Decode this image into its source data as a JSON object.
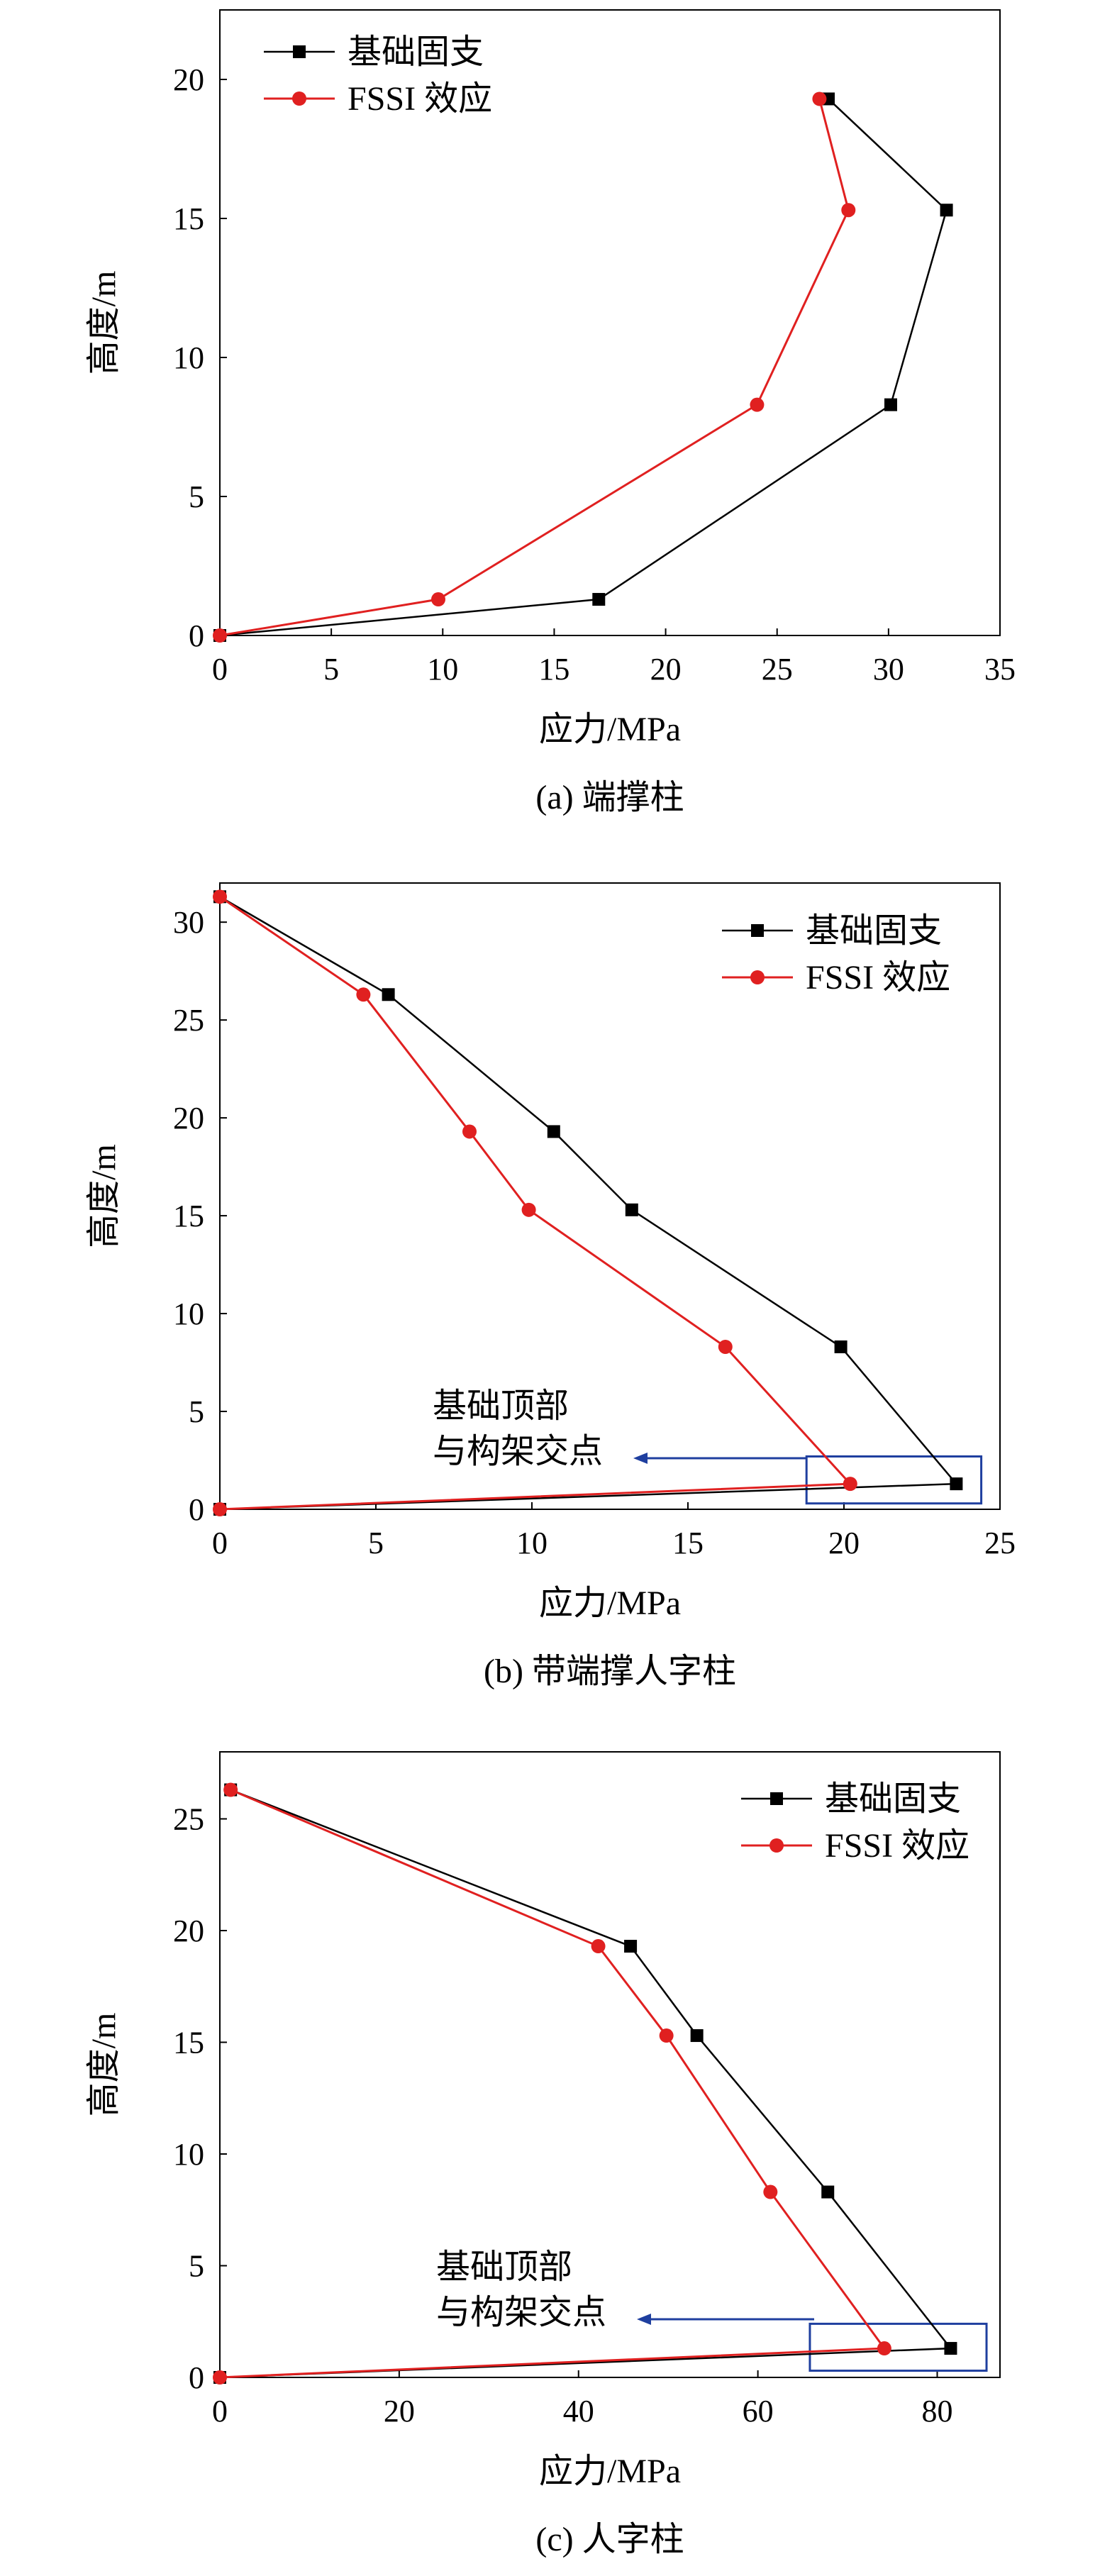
{
  "colors": {
    "fixed": "#000000",
    "fssi": "#e02020",
    "box": "#1f3f9f"
  },
  "chart_data": [
    {
      "type": "line",
      "caption": "(a) 端撑柱",
      "xlabel": "应力/MPa",
      "ylabel": "高度/m",
      "xlim": [
        0,
        35
      ],
      "ylim": [
        0,
        22.5
      ],
      "xticks": [
        0,
        5,
        10,
        15,
        20,
        25,
        30,
        35
      ],
      "yticks": [
        0,
        5,
        10,
        15,
        20
      ],
      "legend_position": "top-left",
      "series": [
        {
          "name": "基础固支",
          "marker": "square",
          "points": [
            [
              0,
              0
            ],
            [
              17,
              1.3
            ],
            [
              30.1,
              8.3
            ],
            [
              32.6,
              15.3
            ],
            [
              27.3,
              19.3
            ]
          ]
        },
        {
          "name": "FSSI 效应",
          "marker": "circle",
          "points": [
            [
              0,
              0
            ],
            [
              9.8,
              1.3
            ],
            [
              24.1,
              8.3
            ],
            [
              28.2,
              15.3
            ],
            [
              26.9,
              19.3
            ]
          ]
        }
      ],
      "annotation": null
    },
    {
      "type": "line",
      "caption": "(b) 带端撑人字柱",
      "xlabel": "应力/MPa",
      "ylabel": "高度/m",
      "xlim": [
        0,
        25
      ],
      "ylim": [
        0,
        32
      ],
      "xticks": [
        0,
        5,
        10,
        15,
        20,
        25
      ],
      "yticks": [
        0,
        5,
        10,
        15,
        20,
        25,
        30
      ],
      "legend_position": "top-right",
      "series": [
        {
          "name": "基础固支",
          "marker": "square",
          "points": [
            [
              0,
              0
            ],
            [
              23.6,
              1.3
            ],
            [
              19.9,
              8.3
            ],
            [
              13.2,
              15.3
            ],
            [
              10.7,
              19.3
            ],
            [
              5.4,
              26.3
            ],
            [
              0,
              31.3
            ]
          ]
        },
        {
          "name": "FSSI 效应",
          "marker": "circle",
          "points": [
            [
              0,
              0
            ],
            [
              20.2,
              1.3
            ],
            [
              16.2,
              8.3
            ],
            [
              9.9,
              15.3
            ],
            [
              8,
              19.3
            ],
            [
              4.6,
              26.3
            ],
            [
              0,
              31.3
            ]
          ]
        }
      ],
      "annotation": {
        "line1": "基础顶部",
        "line2": "与构架交点",
        "box_x": [
          18.8,
          24.4
        ],
        "box_y": [
          0.3,
          2.7
        ]
      }
    },
    {
      "type": "line",
      "caption": "(c) 人字柱",
      "xlabel": "应力/MPa",
      "ylabel": "高度/m",
      "xlim": [
        0,
        87
      ],
      "ylim": [
        0,
        28
      ],
      "xticks": [
        0,
        20,
        40,
        60,
        80
      ],
      "yticks": [
        0,
        5,
        10,
        15,
        20,
        25
      ],
      "legend_position": "top-right",
      "series": [
        {
          "name": "基础固支",
          "marker": "square",
          "points": [
            [
              0,
              0
            ],
            [
              81.5,
              1.3
            ],
            [
              67.8,
              8.3
            ],
            [
              53.2,
              15.3
            ],
            [
              45.8,
              19.3
            ],
            [
              1.2,
              26.3
            ]
          ]
        },
        {
          "name": "FSSI 效应",
          "marker": "circle",
          "points": [
            [
              0,
              0
            ],
            [
              74.1,
              1.3
            ],
            [
              61.4,
              8.3
            ],
            [
              49.8,
              15.3
            ],
            [
              42.2,
              19.3
            ],
            [
              1.2,
              26.3
            ]
          ]
        }
      ],
      "annotation": {
        "line1": "基础顶部",
        "line2": "与构架交点",
        "box_x": [
          65.8,
          85.5
        ],
        "box_y": [
          0.3,
          2.4
        ]
      }
    }
  ]
}
